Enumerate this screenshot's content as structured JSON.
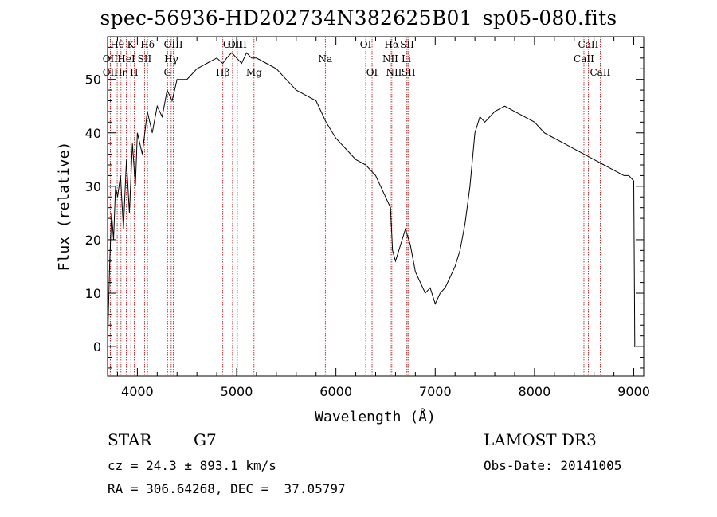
{
  "title": "spec-56936-HD202734N382625B01_sp05-080.fits",
  "chart_data": {
    "type": "line",
    "xlabel": "Wavelength (Å)",
    "ylabel": "Flux (relative)",
    "xlim": [
      3700,
      9100
    ],
    "ylim": [
      -5.5,
      58
    ],
    "xticks": [
      4000,
      5000,
      6000,
      7000,
      8000,
      9000
    ],
    "yticks": [
      0,
      10,
      20,
      30,
      40,
      50
    ],
    "spectrum": {
      "x": [
        3700,
        3720,
        3740,
        3760,
        3780,
        3800,
        3830,
        3860,
        3890,
        3920,
        3950,
        3980,
        4000,
        4050,
        4100,
        4150,
        4200,
        4250,
        4300,
        4350,
        4400,
        4500,
        4600,
        4700,
        4800,
        4860,
        4900,
        4950,
        5000,
        5050,
        5100,
        5150,
        5200,
        5300,
        5400,
        5500,
        5600,
        5700,
        5800,
        5850,
        5900,
        6000,
        6100,
        6200,
        6300,
        6400,
        6450,
        6500,
        6550,
        6570,
        6600,
        6650,
        6700,
        6750,
        6800,
        6850,
        6900,
        6950,
        7000,
        7050,
        7100,
        7150,
        7200,
        7250,
        7300,
        7350,
        7400,
        7450,
        7500,
        7550,
        7600,
        7700,
        7800,
        7900,
        8000,
        8100,
        8200,
        8300,
        8400,
        8500,
        8600,
        8700,
        8800,
        8900,
        8950,
        9000,
        9010
      ],
      "y": [
        0,
        15,
        25,
        20,
        30,
        28,
        32,
        22,
        35,
        25,
        38,
        30,
        40,
        36,
        44,
        40,
        45,
        43,
        48,
        46,
        50,
        50,
        52,
        53,
        54,
        53,
        54,
        55,
        54,
        53,
        55,
        54,
        54,
        53,
        52,
        50,
        48,
        47,
        46,
        44,
        42,
        39,
        37,
        35,
        34,
        32,
        30,
        28,
        26,
        18,
        16,
        19,
        22,
        19,
        14,
        12,
        10,
        11,
        8,
        10,
        11,
        13,
        15,
        18,
        23,
        30,
        40,
        43,
        42,
        43,
        44,
        45,
        44,
        43,
        42,
        40,
        39,
        38,
        37,
        36,
        35,
        34,
        33,
        32,
        32,
        31,
        0
      ]
    },
    "lines": [
      {
        "name": "Hθ",
        "x": 3797,
        "row": 0
      },
      {
        "name": "OII",
        "x": 3727,
        "row": 1
      },
      {
        "name": "OII",
        "x": 3727,
        "row": 2
      },
      {
        "name": "K",
        "x": 3934,
        "row": 0
      },
      {
        "name": "HeI",
        "x": 3889,
        "row": 1
      },
      {
        "name": "Hη",
        "x": 3835,
        "row": 2
      },
      {
        "name": "SII",
        "x": 4072,
        "row": 1
      },
      {
        "name": "H",
        "x": 3968,
        "row": 2
      },
      {
        "name": "Hδ",
        "x": 4102,
        "row": 0
      },
      {
        "name": "OIII",
        "x": 4363,
        "row": 0
      },
      {
        "name": "Hγ",
        "x": 4341,
        "row": 1
      },
      {
        "name": "G",
        "x": 4304,
        "row": 2
      },
      {
        "name": "OIII",
        "x": 4959,
        "row": 0
      },
      {
        "name": "OIII",
        "x": 5007,
        "row": 0
      },
      {
        "name": "Mg",
        "x": 5175,
        "row": 2
      },
      {
        "name": "Hβ",
        "x": 4861,
        "row": 2
      },
      {
        "name": "Na",
        "x": 5893,
        "row": 1
      },
      {
        "name": "OI",
        "x": 6300,
        "row": 0
      },
      {
        "name": "OI",
        "x": 6364,
        "row": 2
      },
      {
        "name": "Hα",
        "x": 6563,
        "row": 0
      },
      {
        "name": "NII",
        "x": 6548,
        "row": 1
      },
      {
        "name": "NII",
        "x": 6584,
        "row": 2
      },
      {
        "name": "SII",
        "x": 6717,
        "row": 0
      },
      {
        "name": "Li",
        "x": 6708,
        "row": 1
      },
      {
        "name": "SII",
        "x": 6731,
        "row": 2
      },
      {
        "name": "CaII",
        "x": 8542,
        "row": 0
      },
      {
        "name": "CaII",
        "x": 8498,
        "row": 1
      },
      {
        "name": "CaII",
        "x": 8662,
        "row": 2
      }
    ]
  },
  "info": {
    "class": "STAR",
    "subclass": "G7",
    "survey": "LAMOST DR3",
    "cz": "cz = 24.3 ± 893.1 km/s",
    "obs_date": "Obs-Date: 20141005",
    "radec": "RA = 306.64268, DEC =  37.05797"
  }
}
